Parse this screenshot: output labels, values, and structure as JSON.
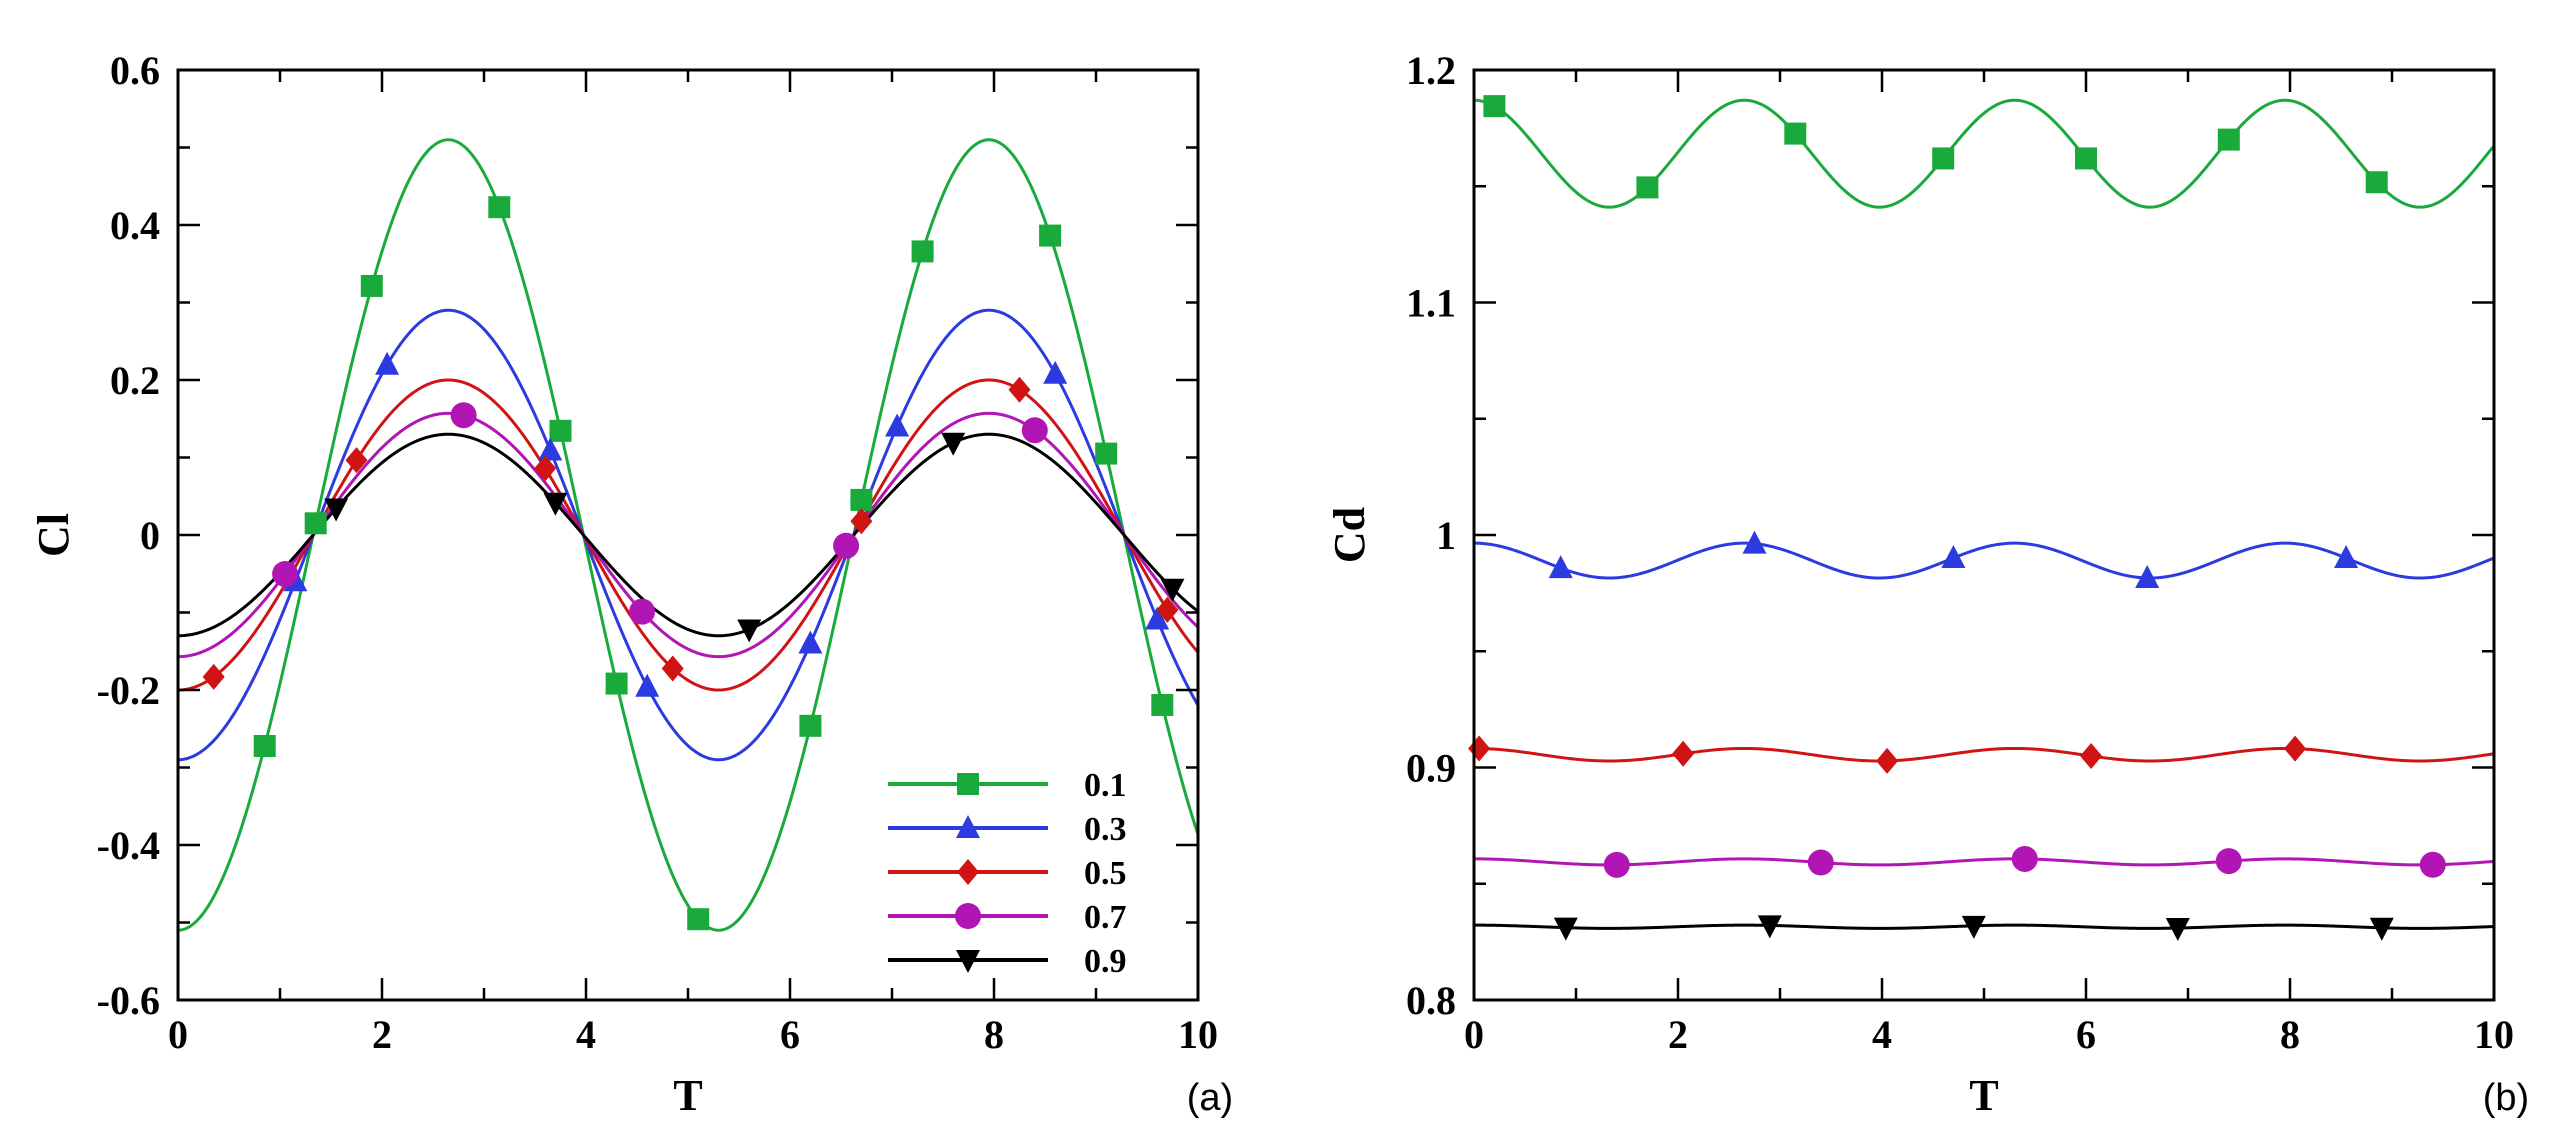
{
  "chart_data": [
    {
      "type": "line",
      "panel_label": "(a)",
      "xlabel": "T",
      "ylabel": "Cl",
      "xlim": [
        0,
        10
      ],
      "ylim": [
        -0.6,
        0.6
      ],
      "xticks": [
        0,
        2,
        4,
        6,
        8,
        10
      ],
      "yticks": [
        -0.6,
        -0.4,
        -0.2,
        0,
        0.2,
        0.4,
        0.6
      ],
      "ytick_labels": [
        "-0.6",
        "-0.4",
        "-0.2",
        "0",
        "0.2",
        "0.4",
        "0.6"
      ],
      "grid": false,
      "legend_position": "bottom-right",
      "wave": {
        "period": 5.3,
        "phase_zero_crossing": 1.325
      },
      "series": [
        {
          "name": "0.1",
          "color": "#1aaa3c",
          "marker": "square",
          "amplitude": 0.51,
          "offset": 0.0,
          "marker_x": [
            0.85,
            1.35,
            1.9,
            3.15,
            3.75,
            4.3,
            5.1,
            6.2,
            6.7,
            7.3,
            8.55,
            9.1,
            9.65
          ]
        },
        {
          "name": "0.3",
          "color": "#2b3be0",
          "marker": "triangle-up",
          "amplitude": 0.29,
          "offset": 0.0,
          "marker_x": [
            1.15,
            2.05,
            3.65,
            4.6,
            6.2,
            7.05,
            8.6,
            9.6
          ]
        },
        {
          "name": "0.5",
          "color": "#d01414",
          "marker": "diamond",
          "amplitude": 0.2,
          "offset": 0.0,
          "marker_x": [
            0.35,
            1.75,
            3.6,
            4.85,
            6.7,
            8.25,
            9.7
          ]
        },
        {
          "name": "0.7",
          "color": "#b116b5",
          "marker": "circle",
          "amplitude": 0.157,
          "offset": 0.0,
          "marker_x": [
            1.05,
            2.8,
            4.55,
            6.55,
            8.4
          ]
        },
        {
          "name": "0.9",
          "color": "#000000",
          "marker": "triangle-down",
          "amplitude": 0.13,
          "offset": 0.0,
          "marker_x": [
            1.55,
            3.7,
            5.6,
            7.6,
            9.75
          ]
        }
      ]
    },
    {
      "type": "line",
      "panel_label": "(b)",
      "xlabel": "T",
      "ylabel": "Cd",
      "xlim": [
        0,
        10
      ],
      "ylim": [
        0.8,
        1.2
      ],
      "xticks": [
        0,
        2,
        4,
        6,
        8,
        10
      ],
      "yticks": [
        0.8,
        0.9,
        1.0,
        1.1,
        1.2
      ],
      "ytick_labels": [
        "0.8",
        "0.9",
        "1",
        "1.1",
        "1.2"
      ],
      "grid": false,
      "legend_position": "none",
      "wave": {
        "period": 2.65,
        "peak_at": 0.0
      },
      "series": [
        {
          "name": "0.1",
          "color": "#1aaa3c",
          "marker": "square",
          "mean": 1.164,
          "amplitude": 0.023,
          "marker_x": [
            0.2,
            1.7,
            3.15,
            4.6,
            6.0,
            7.4,
            8.85
          ]
        },
        {
          "name": "0.3",
          "color": "#2b3be0",
          "marker": "triangle-up",
          "mean": 0.989,
          "amplitude": 0.0075,
          "marker_x": [
            0.85,
            2.75,
            4.7,
            6.6,
            8.55
          ]
        },
        {
          "name": "0.5",
          "color": "#d01414",
          "marker": "diamond",
          "mean": 0.9055,
          "amplitude": 0.0027,
          "marker_x": [
            0.05,
            2.05,
            4.05,
            6.05,
            8.05
          ]
        },
        {
          "name": "0.7",
          "color": "#b116b5",
          "marker": "circle",
          "mean": 0.8594,
          "amplitude": 0.0013,
          "marker_x": [
            1.4,
            3.4,
            5.4,
            7.4,
            9.4
          ]
        },
        {
          "name": "0.9",
          "color": "#000000",
          "marker": "triangle-down",
          "mean": 0.8315,
          "amplitude": 0.0007,
          "marker_x": [
            0.9,
            2.9,
            4.9,
            6.9,
            8.9
          ]
        }
      ]
    }
  ]
}
